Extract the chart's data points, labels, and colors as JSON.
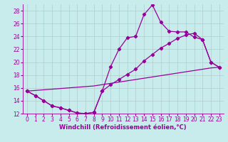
{
  "xlabel": "Windchill (Refroidissement éolien,°C)",
  "xlim_min": -0.5,
  "xlim_max": 23.5,
  "ylim_min": 12,
  "ylim_max": 29,
  "xticks": [
    0,
    1,
    2,
    3,
    4,
    5,
    6,
    7,
    8,
    9,
    10,
    11,
    12,
    13,
    14,
    15,
    16,
    17,
    18,
    19,
    20,
    21,
    22,
    23
  ],
  "yticks": [
    12,
    14,
    16,
    18,
    20,
    22,
    24,
    26,
    28
  ],
  "background_color": "#c8ecec",
  "grid_color": "#b0cccc",
  "line_color": "#990099",
  "curve1_x": [
    0,
    1,
    2,
    3,
    4,
    5,
    6,
    7,
    8,
    9,
    10,
    11,
    12,
    13,
    14,
    15,
    16,
    17,
    18,
    19,
    20,
    21,
    22,
    23
  ],
  "curve1_y": [
    15.5,
    14.8,
    14.0,
    13.2,
    12.9,
    12.5,
    12.1,
    12.0,
    12.2,
    15.5,
    19.3,
    22.0,
    23.8,
    24.0,
    27.4,
    28.9,
    26.2,
    24.8,
    24.7,
    24.7,
    23.9,
    23.5,
    20.0,
    19.2
  ],
  "curve2_x": [
    0,
    1,
    2,
    3,
    4,
    5,
    6,
    7,
    8,
    9,
    10,
    11,
    12,
    13,
    14,
    15,
    16,
    17,
    18,
    19,
    20,
    21,
    22,
    23
  ],
  "curve2_y": [
    15.5,
    14.8,
    14.0,
    13.2,
    12.9,
    12.5,
    12.1,
    12.0,
    12.2,
    15.5,
    16.5,
    17.3,
    18.1,
    18.9,
    20.2,
    21.2,
    22.2,
    22.9,
    23.7,
    24.2,
    24.5,
    23.5,
    20.0,
    19.2
  ],
  "curve3_x": [
    0,
    1,
    2,
    3,
    4,
    5,
    6,
    7,
    8,
    9,
    10,
    11,
    12,
    13,
    14,
    15,
    16,
    17,
    18,
    19,
    20,
    21,
    22,
    23
  ],
  "curve3_y": [
    15.5,
    15.6,
    15.7,
    15.8,
    15.9,
    16.0,
    16.1,
    16.2,
    16.3,
    16.5,
    16.7,
    16.9,
    17.1,
    17.3,
    17.5,
    17.7,
    17.9,
    18.1,
    18.3,
    18.5,
    18.7,
    18.9,
    19.1,
    19.2
  ],
  "lw": 0.9,
  "ms": 2.2,
  "fontsize_ticks": 5.5,
  "fontsize_xlabel": 6.0
}
